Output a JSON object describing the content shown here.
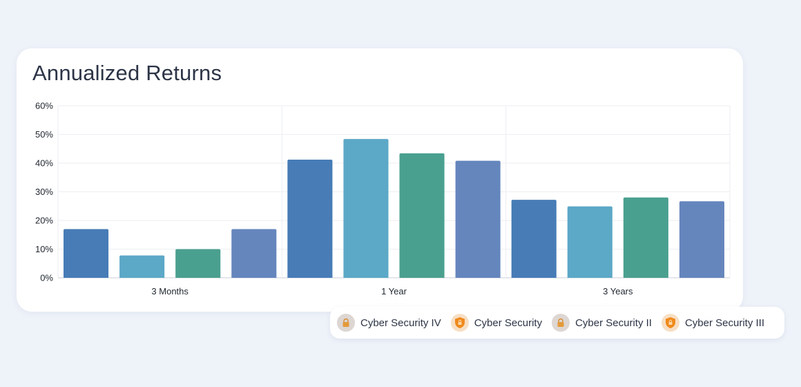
{
  "card": {
    "title": "Annualized Returns"
  },
  "chart_data": {
    "type": "bar",
    "title": "Annualized Returns",
    "xlabel": "",
    "ylabel": "",
    "ylim": [
      0,
      60
    ],
    "yticks": [
      0,
      10,
      20,
      30,
      40,
      50,
      60
    ],
    "ytick_labels": [
      "0%",
      "10%",
      "20%",
      "30%",
      "40%",
      "50%",
      "60%"
    ],
    "grid": true,
    "categories": [
      "3 Months",
      "1 Year",
      "3 Years"
    ],
    "series": [
      {
        "name": "Cyber Security IV",
        "color": "#477cb6",
        "values": [
          17.0,
          41.2,
          27.2
        ]
      },
      {
        "name": "Cyber Security",
        "color": "#5ca8c7",
        "values": [
          7.8,
          48.4,
          24.9
        ]
      },
      {
        "name": "Cyber Security II",
        "color": "#4aa08f",
        "values": [
          10.0,
          43.4,
          28.0
        ]
      },
      {
        "name": "Cyber Security III",
        "color": "#6586bd",
        "values": [
          17.0,
          40.8,
          26.7
        ]
      }
    ]
  },
  "legend": {
    "items": [
      {
        "label": "Cyber Security IV",
        "icon": "lock-icon"
      },
      {
        "label": "Cyber Security",
        "icon": "shield-icon"
      },
      {
        "label": "Cyber Security II",
        "icon": "lock-icon"
      },
      {
        "label": "Cyber Security III",
        "icon": "shield-icon"
      }
    ]
  }
}
